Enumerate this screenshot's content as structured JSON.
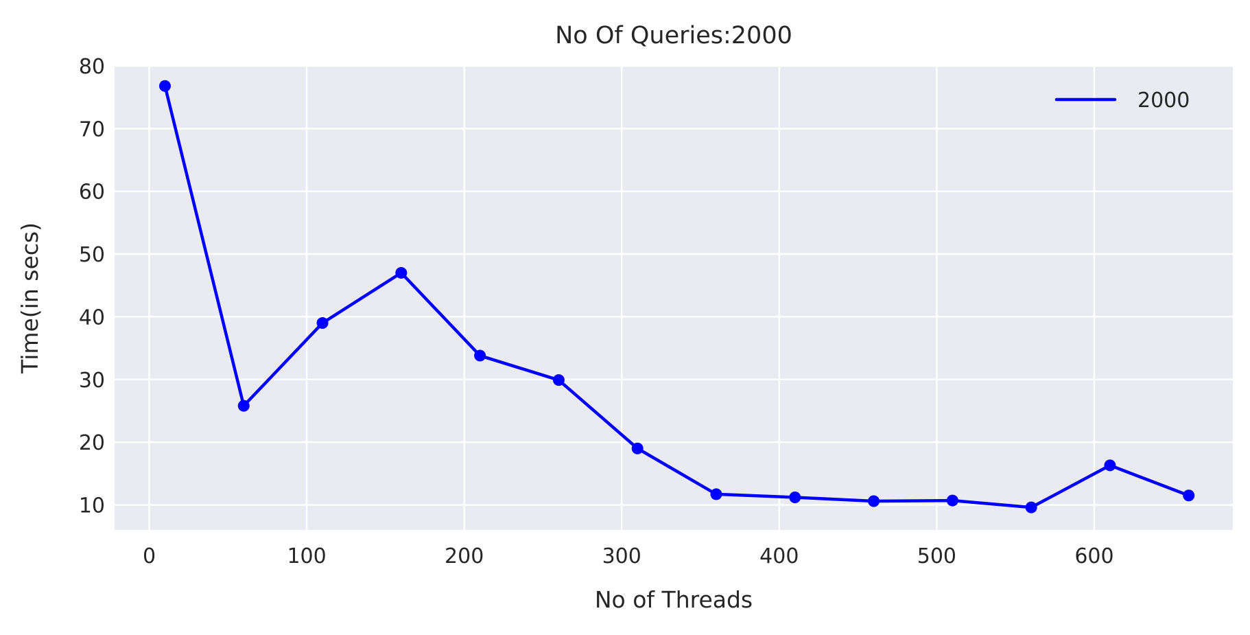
{
  "chart_data": {
    "type": "line",
    "title": "No Of Queries:2000",
    "xlabel": "No of Threads",
    "ylabel": "Time(in secs)",
    "xlim": [
      -22,
      688
    ],
    "ylim": [
      6,
      80
    ],
    "xticks": [
      0,
      100,
      200,
      300,
      400,
      500,
      600
    ],
    "yticks": [
      10,
      20,
      30,
      40,
      50,
      60,
      70,
      80
    ],
    "grid": true,
    "legend": {
      "position": "top-right",
      "entries": [
        "2000"
      ]
    },
    "colors": {
      "background": "#eaeaf2",
      "grid": "#ffffff",
      "series": "#0000ff"
    },
    "series": [
      {
        "name": "2000",
        "x": [
          10,
          60,
          110,
          160,
          210,
          260,
          310,
          360,
          410,
          460,
          510,
          560,
          610,
          660
        ],
        "y": [
          76.8,
          25.8,
          39.0,
          47.0,
          33.8,
          29.9,
          19.0,
          11.7,
          11.2,
          10.6,
          10.7,
          9.6,
          16.3,
          11.5
        ]
      }
    ]
  }
}
